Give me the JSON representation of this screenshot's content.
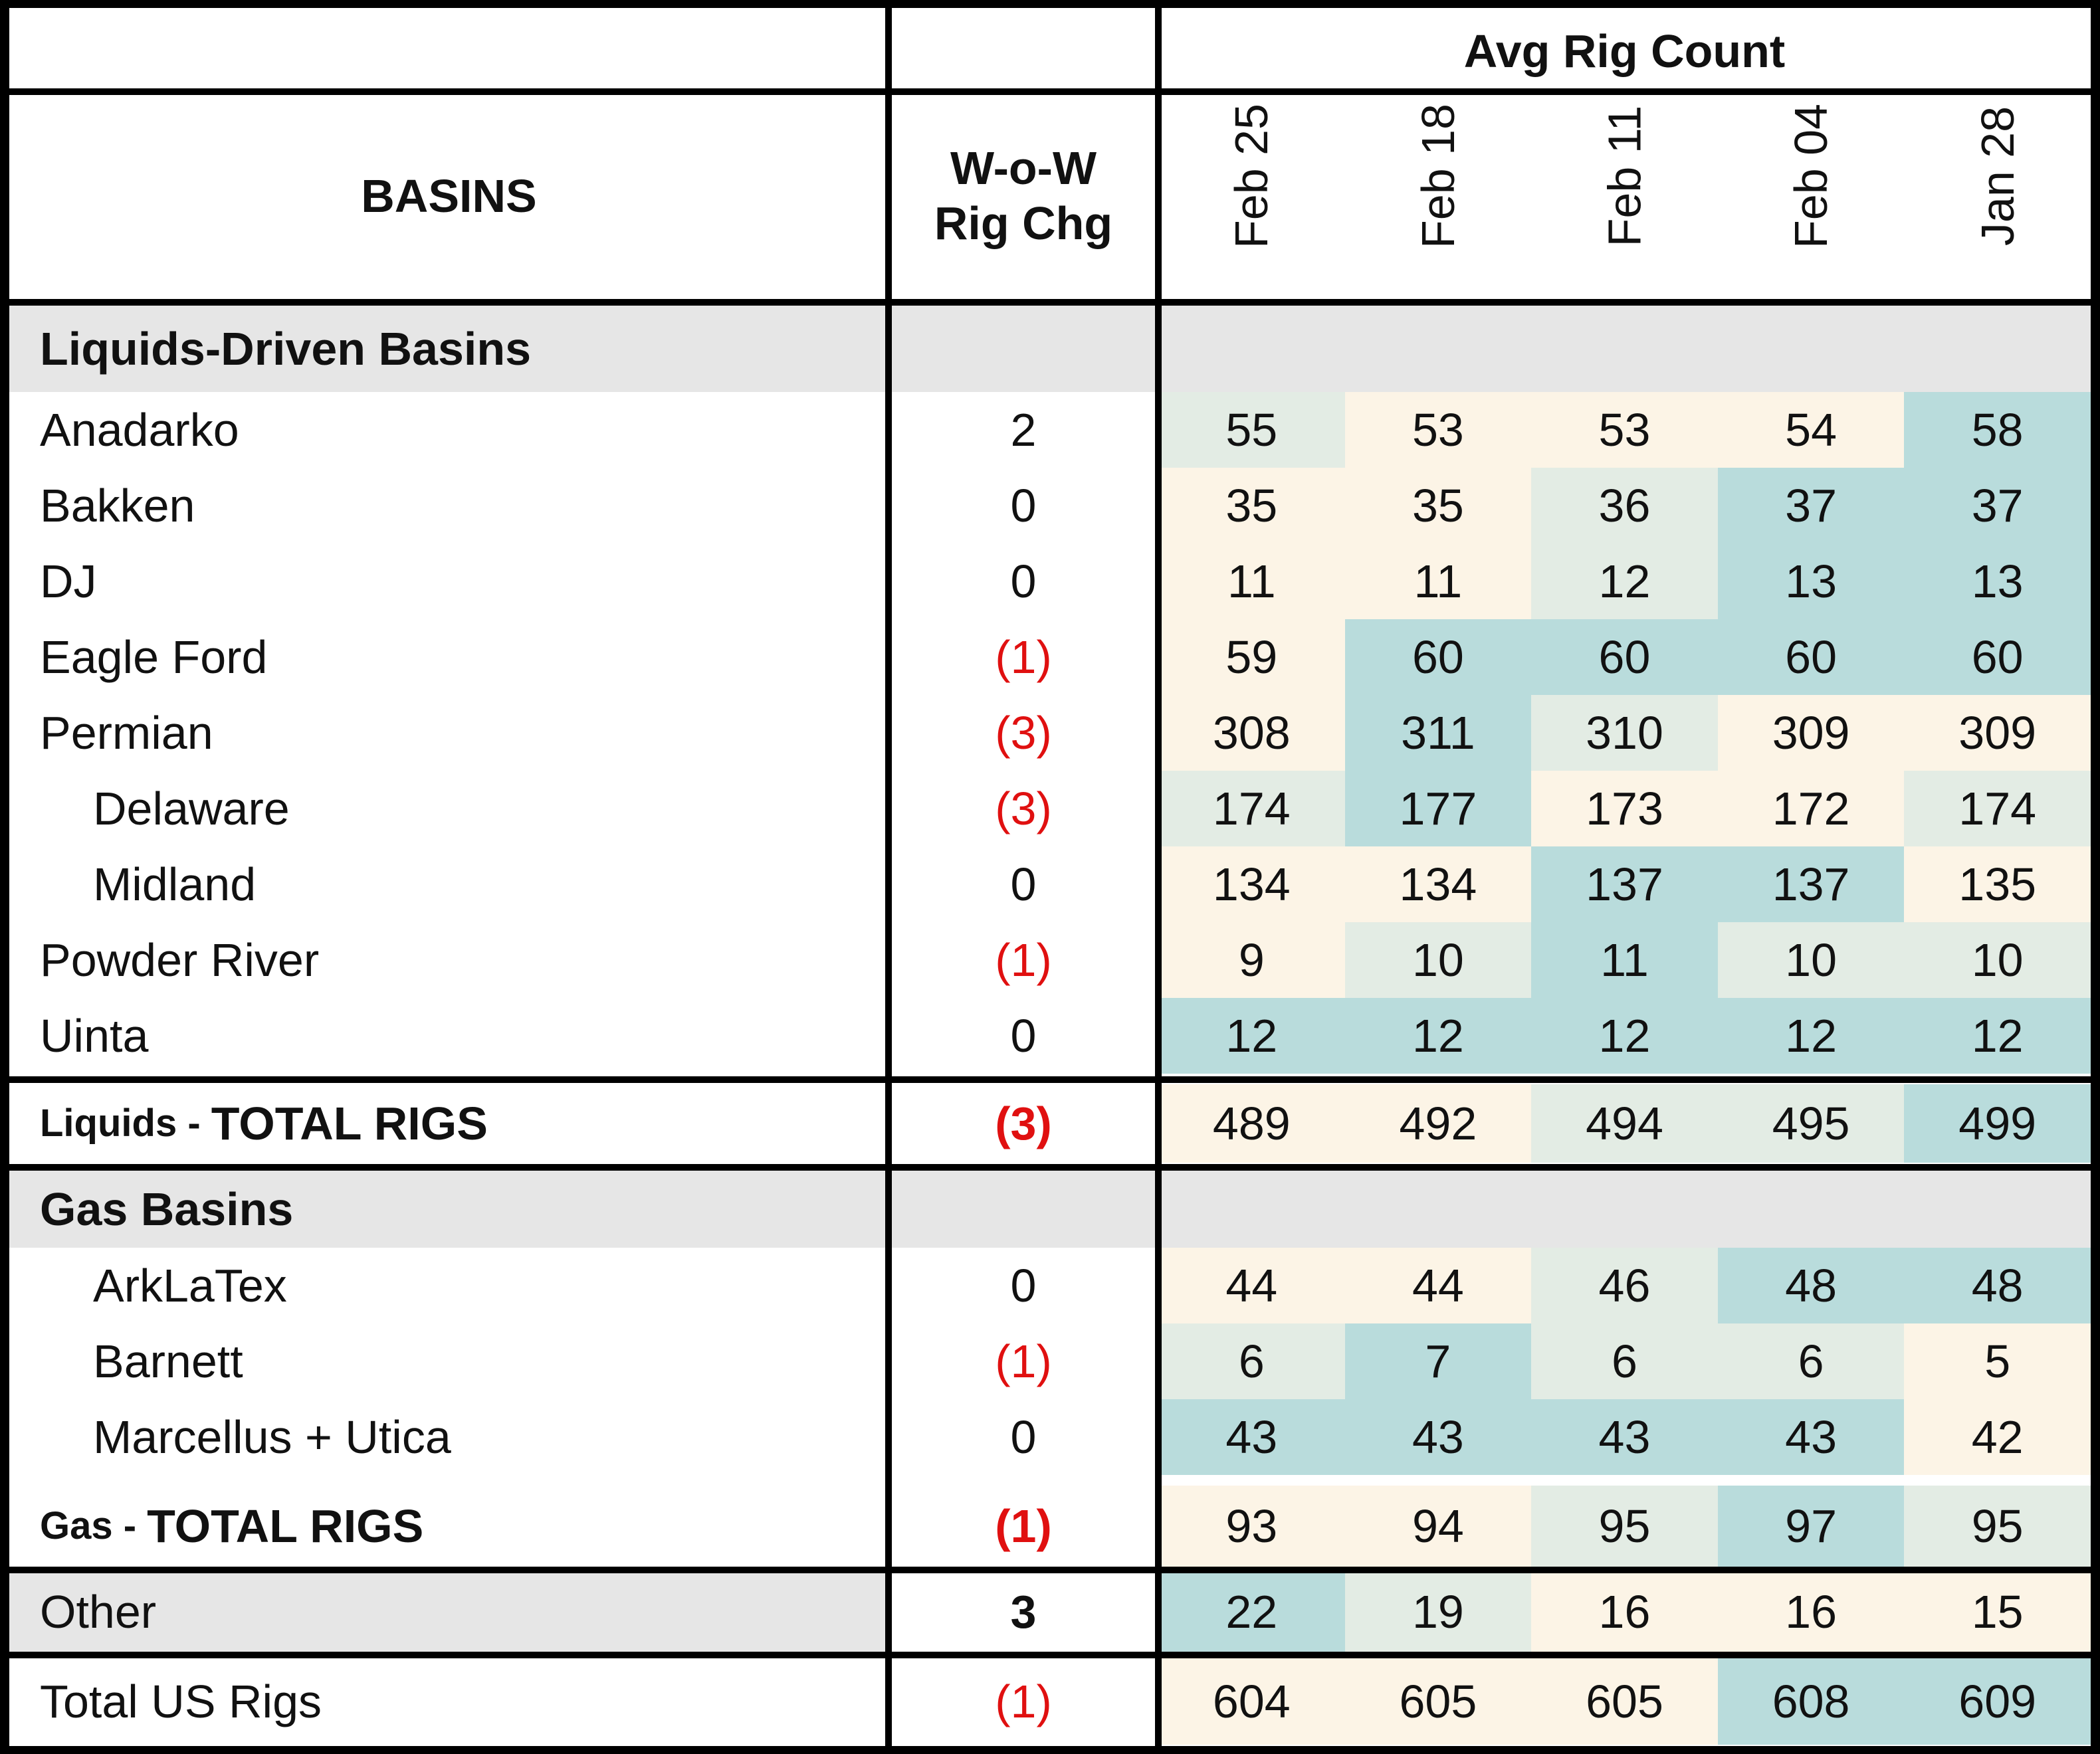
{
  "chart_data": {
    "type": "table",
    "header": {
      "basins": "BASINS",
      "wow_line1": "W-o-W",
      "wow_line2": "Rig Chg",
      "avg": "Avg Rig Count"
    },
    "dates": [
      "Feb 25",
      "Feb 18",
      "Feb 11",
      "Feb 04",
      "Jan 28"
    ],
    "sections": [
      {
        "title": "Liquids-Driven Basins",
        "rows": [
          {
            "name": "Anadarko",
            "indent": false,
            "chg": "2",
            "values": [
              55,
              53,
              53,
              54,
              58
            ]
          },
          {
            "name": "Bakken",
            "indent": false,
            "chg": "0",
            "values": [
              35,
              35,
              36,
              37,
              37
            ]
          },
          {
            "name": "DJ",
            "indent": false,
            "chg": "0",
            "values": [
              11,
              11,
              12,
              13,
              13
            ]
          },
          {
            "name": "Eagle Ford",
            "indent": false,
            "chg": "(1)",
            "values": [
              59,
              60,
              60,
              60,
              60
            ]
          },
          {
            "name": "Permian",
            "indent": false,
            "chg": "(3)",
            "values": [
              308,
              311,
              310,
              309,
              309
            ]
          },
          {
            "name": "Delaware",
            "indent": true,
            "chg": "(3)",
            "values": [
              174,
              177,
              173,
              172,
              174
            ]
          },
          {
            "name": "Midland",
            "indent": true,
            "chg": "0",
            "values": [
              134,
              134,
              137,
              137,
              135
            ]
          },
          {
            "name": "Powder River",
            "indent": false,
            "chg": "(1)",
            "values": [
              9,
              10,
              11,
              10,
              10
            ]
          },
          {
            "name": "Uinta",
            "indent": false,
            "chg": "0",
            "values": [
              12,
              12,
              12,
              12,
              12
            ]
          }
        ],
        "total": {
          "prefix": "Liquids - ",
          "label": "TOTAL RIGS",
          "chg": "(3)",
          "values": [
            489,
            492,
            494,
            495,
            499
          ]
        }
      },
      {
        "title": "Gas Basins",
        "rows": [
          {
            "name": "ArkLaTex",
            "indent": true,
            "chg": "0",
            "values": [
              44,
              44,
              46,
              48,
              48
            ]
          },
          {
            "name": "Barnett",
            "indent": true,
            "chg": "(1)",
            "values": [
              6,
              7,
              6,
              6,
              5
            ]
          },
          {
            "name": "Marcellus + Utica",
            "indent": true,
            "chg": "0",
            "values": [
              43,
              43,
              43,
              43,
              42
            ]
          }
        ],
        "total": {
          "prefix": "Gas - ",
          "label": "TOTAL RIGS",
          "chg": "(1)",
          "values": [
            93,
            94,
            95,
            97,
            95
          ]
        }
      }
    ],
    "other": {
      "name": "Other",
      "chg": "3",
      "values": [
        22,
        19,
        16,
        16,
        15
      ]
    },
    "grand_total": {
      "name": "Total US Rigs",
      "chg": "(1)",
      "values": [
        604,
        605,
        605,
        608,
        609
      ]
    },
    "colors": {
      "low": "#fcf4e6",
      "mid": "#e3ece4",
      "high": "#b9dcdc",
      "section_bg": "#e6e6e6",
      "negative": "#e01010",
      "border": "#000000"
    }
  }
}
